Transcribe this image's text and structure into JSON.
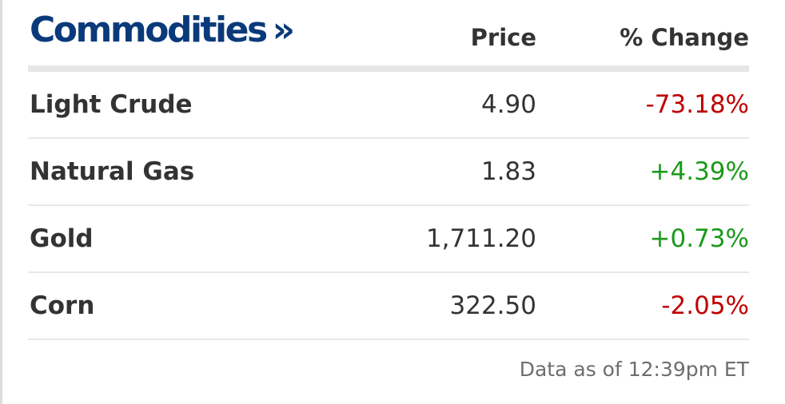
{
  "header": {
    "title": "Commodities",
    "title_arrow": "»",
    "price_label": "Price",
    "change_label": "% Change"
  },
  "rows": [
    {
      "name": "Light Crude",
      "price": "4.90",
      "change": "-73.18%",
      "change_color": "#c00000"
    },
    {
      "name": "Natural Gas",
      "price": "1.83",
      "change": "+4.39%",
      "change_color": "#1a9a1a"
    },
    {
      "name": "Gold",
      "price": "1,711.20",
      "change": "+0.73%",
      "change_color": "#1a9a1a"
    },
    {
      "name": "Corn",
      "price": "322.50",
      "change": "-2.05%",
      "change_color": "#c00000"
    }
  ],
  "footer": {
    "timestamp": "Data as of 12:39pm ET"
  },
  "colors": {
    "title": "#0a3a7a",
    "negative": "#c00000",
    "positive": "#1a9a1a"
  }
}
